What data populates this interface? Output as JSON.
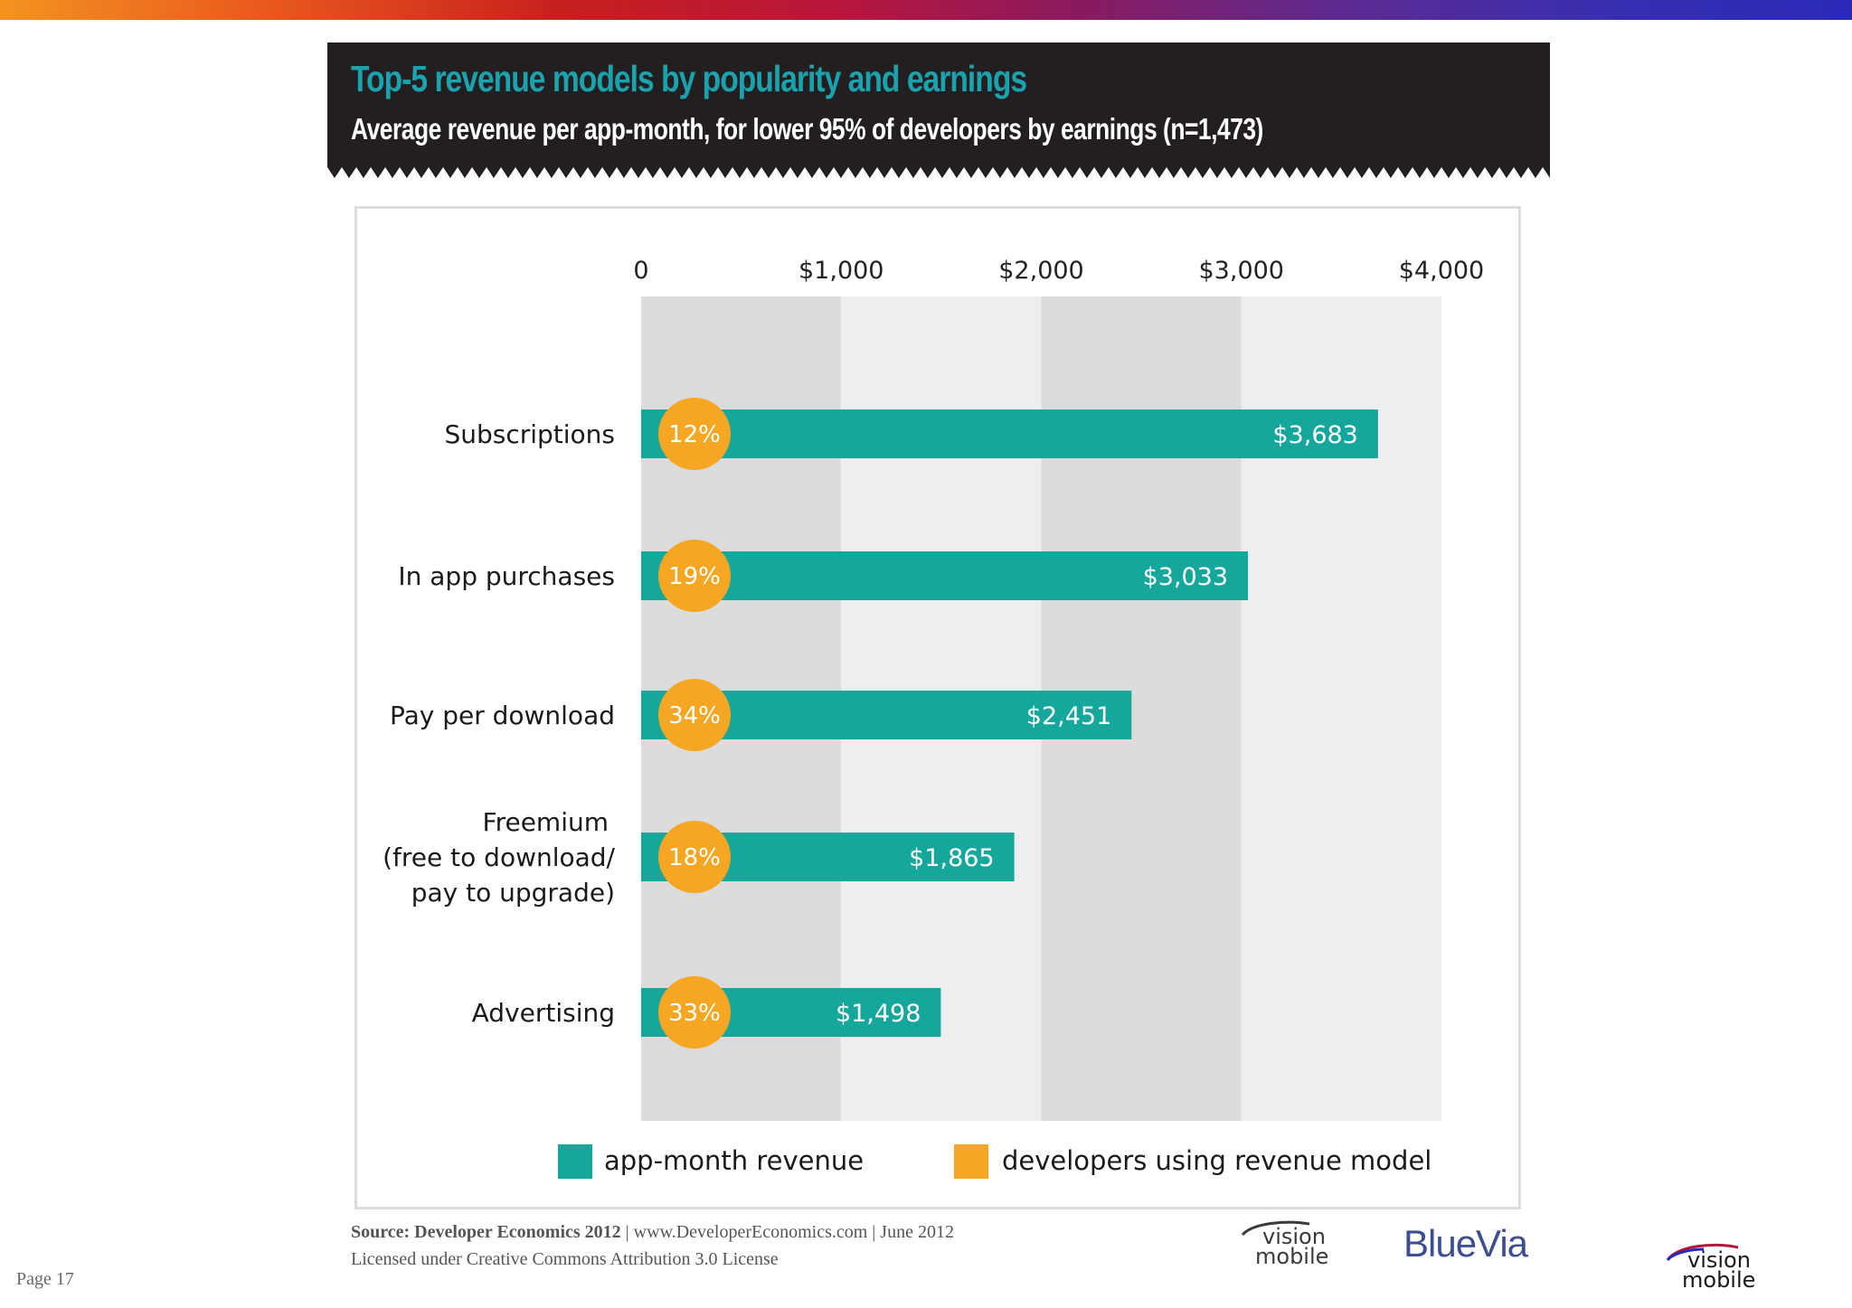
{
  "header": {
    "title": "Top-5 revenue models by popularity and earnings",
    "subtitle": "Average revenue per app-month, for lower 95% of developers by earnings (n=1,473)"
  },
  "colors": {
    "bar": "#16a79c",
    "circle": "#f5a623",
    "header_bg": "#231f20",
    "title": "#1aa3ae",
    "band_dark": "#dcdcdd",
    "band_light": "#eeeeef"
  },
  "chart_data": {
    "type": "bar",
    "orientation": "horizontal",
    "xlim": [
      0,
      4000
    ],
    "x_ticks": [
      "0",
      "$1,000",
      "$2,000",
      "$3,000",
      "$4,000"
    ],
    "x_tick_values": [
      0,
      1000,
      2000,
      3000,
      4000
    ],
    "categories": [
      [
        "Subscriptions"
      ],
      [
        "In app purchases"
      ],
      [
        "Pay per download"
      ],
      [
        "Freemium",
        "(free to download/",
        "pay to upgrade)"
      ],
      [
        "Advertising"
      ]
    ],
    "series": [
      {
        "name": "app-month revenue",
        "values": [
          3683,
          3033,
          2451,
          1865,
          1498
        ],
        "labels": [
          "$3,683",
          "$3,033",
          "$2,451",
          "$1,865",
          "$1,498"
        ]
      },
      {
        "name": "developers using revenue model",
        "values": [
          12,
          19,
          34,
          18,
          33
        ],
        "labels": [
          "12%",
          "19%",
          "34%",
          "18%",
          "33%"
        ]
      }
    ],
    "legend_position": "bottom",
    "grid": "alternating vertical bands"
  },
  "footer": {
    "source_bold": "Source: Developer Economics 2012",
    "source_rest": " | www.DeveloperEconomics.com | June 2012",
    "license": "Licensed under Creative Commons Attribution 3.0 License",
    "page": "Page 17",
    "logo_vision": "vision",
    "logo_mobile": "mobile",
    "logo_bluevia": "BlueVia"
  }
}
